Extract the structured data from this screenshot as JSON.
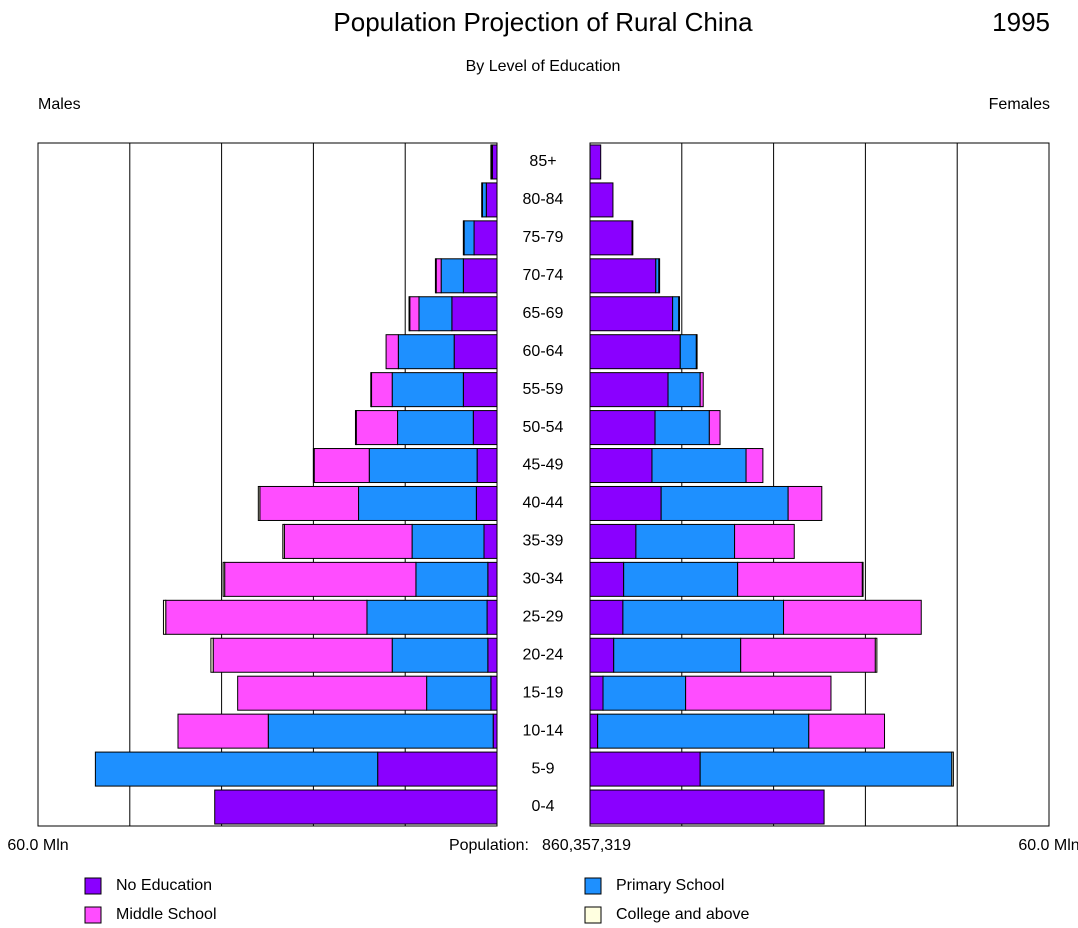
{
  "chart_data": {
    "type": "pyramid",
    "title": "Population Projection of Rural China",
    "year": "1995",
    "subtitle": "By Level of Education",
    "sides": [
      "Males",
      "Females"
    ],
    "population_label": "Population:",
    "population": "860,357,319",
    "categories": [
      "85+",
      "80-84",
      "75-79",
      "70-74",
      "65-69",
      "60-64",
      "55-59",
      "50-54",
      "45-49",
      "40-44",
      "35-39",
      "30-34",
      "25-29",
      "20-24",
      "15-19",
      "10-14",
      "5-9",
      "0-4"
    ],
    "xlim": [
      0,
      60
    ],
    "xticks": [
      {
        "value": 60,
        "label": "60.0 Mln"
      }
    ],
    "xgrid": [
      12,
      24,
      36,
      48
    ],
    "series": [
      {
        "name": "No Education",
        "color": "#8a00ff",
        "males": [
          0.6,
          1.4,
          3.0,
          4.4,
          5.9,
          5.6,
          4.4,
          3.1,
          2.6,
          2.7,
          1.7,
          1.2,
          1.3,
          1.2,
          0.8,
          0.5,
          15.6,
          36.9
        ],
        "females": [
          1.4,
          3.0,
          5.5,
          8.6,
          10.8,
          11.8,
          10.2,
          8.5,
          8.1,
          9.3,
          6.0,
          4.4,
          4.3,
          3.1,
          1.7,
          1.0,
          14.4,
          30.6
        ]
      },
      {
        "name": "Primary School",
        "color": "#1e90ff",
        "males": [
          0.1,
          0.5,
          1.3,
          2.9,
          4.3,
          7.3,
          9.3,
          9.9,
          14.1,
          15.4,
          9.4,
          9.4,
          15.7,
          12.5,
          8.4,
          29.4,
          36.9,
          0
        ],
        "females": [
          0,
          0,
          0,
          0.4,
          0.8,
          2.1,
          4.2,
          7.1,
          12.3,
          16.6,
          12.9,
          14.9,
          21.0,
          16.6,
          10.8,
          27.6,
          32.9,
          0
        ]
      },
      {
        "name": "Middle School",
        "color": "#ff4dff",
        "males": [
          0,
          0,
          0,
          0.65,
          1.2,
          1.6,
          2.7,
          5.4,
          7.2,
          12.9,
          16.7,
          25.0,
          26.3,
          23.4,
          24.7,
          11.8,
          0,
          0
        ],
        "females": [
          0,
          0,
          0,
          0,
          0,
          0,
          0.4,
          1.4,
          2.2,
          4.4,
          7.8,
          16.3,
          18.0,
          17.6,
          19.0,
          9.9,
          0,
          0
        ]
      },
      {
        "name": "College and above",
        "color": "#ffffe0",
        "males": [
          0.1,
          0.1,
          0.1,
          0.1,
          0.1,
          0,
          0.1,
          0.1,
          0.1,
          0.2,
          0.2,
          0.2,
          0.3,
          0.3,
          0,
          0,
          0,
          0
        ],
        "females": [
          0,
          0,
          0.1,
          0.1,
          0.1,
          0.1,
          0,
          0,
          0,
          0,
          0,
          0.1,
          0,
          0.2,
          0,
          0,
          0.2,
          0
        ]
      }
    ]
  }
}
